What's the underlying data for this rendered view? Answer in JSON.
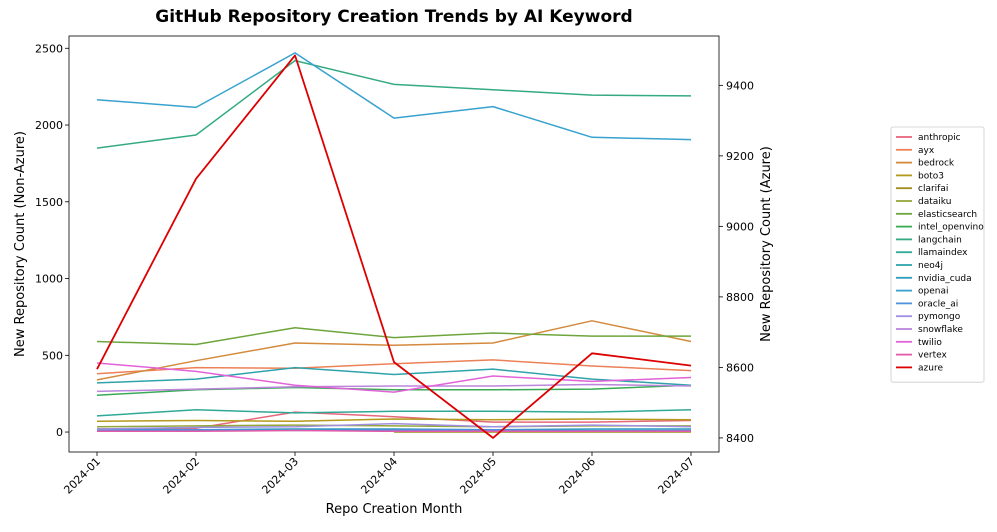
{
  "chart_data": {
    "type": "line",
    "title": "GitHub Repository Creation Trends by AI Keyword",
    "xlabel": "Repo Creation Month",
    "ylabel": "New Repository Count (Non-Azure)",
    "y2label": "New Repository Count (Azure)",
    "categories": [
      "2024-01",
      "2024-02",
      "2024-03",
      "2024-04",
      "2024-05",
      "2024-06",
      "2024-07"
    ],
    "ylim": [
      -130,
      2580
    ],
    "yticks": [
      0,
      500,
      1000,
      1500,
      2000,
      2500
    ],
    "y2lim": [
      8360,
      9540
    ],
    "y2ticks": [
      8400,
      8600,
      8800,
      9000,
      9200,
      9400
    ],
    "grid": false,
    "legend_position": "right",
    "series": [
      {
        "name": "anthropic",
        "color": "#e6677a",
        "axis": "left",
        "values": [
          20,
          25,
          130,
          100,
          65,
          65,
          75
        ]
      },
      {
        "name": "ayx",
        "color": "#ec8057",
        "axis": "left",
        "values": [
          380,
          420,
          415,
          445,
          470,
          430,
          400
        ]
      },
      {
        "name": "bedrock",
        "color": "#d38a3c",
        "axis": "left",
        "values": [
          340,
          465,
          580,
          565,
          580,
          725,
          590
        ]
      },
      {
        "name": "boto3",
        "color": "#b4991c",
        "axis": "left",
        "values": [
          70,
          75,
          70,
          85,
          80,
          85,
          80
        ]
      },
      {
        "name": "clarifai",
        "color": "#a08a1a",
        "axis": "left",
        "values": [
          null,
          null,
          null,
          0,
          0,
          0,
          0
        ]
      },
      {
        "name": "dataiku",
        "color": "#93a63a",
        "axis": "left",
        "values": [
          35,
          40,
          45,
          40,
          35,
          40,
          40
        ]
      },
      {
        "name": "elasticsearch",
        "color": "#6da53c",
        "axis": "left",
        "values": [
          590,
          570,
          680,
          615,
          645,
          625,
          625
        ]
      },
      {
        "name": "intel_openvino",
        "color": "#3aaa57",
        "axis": "left",
        "values": [
          240,
          275,
          290,
          275,
          275,
          280,
          305
        ]
      },
      {
        "name": "langchain",
        "color": "#35aa82",
        "axis": "left",
        "values": [
          1850,
          1935,
          2420,
          2265,
          2230,
          2195,
          2190
        ]
      },
      {
        "name": "llamaindex",
        "color": "#30a896",
        "axis": "left",
        "values": [
          105,
          145,
          125,
          135,
          135,
          130,
          145
        ]
      },
      {
        "name": "neo4j",
        "color": "#2fa2ab",
        "axis": "left",
        "values": [
          320,
          345,
          420,
          375,
          410,
          345,
          305
        ]
      },
      {
        "name": "nvidia_cuda",
        "color": "#2f9bbe",
        "axis": "left",
        "values": [
          20,
          15,
          20,
          20,
          15,
          20,
          20
        ]
      },
      {
        "name": "openai",
        "color": "#38a2cf",
        "axis": "left",
        "values": [
          2165,
          2115,
          2470,
          2045,
          2120,
          1920,
          1905
        ]
      },
      {
        "name": "oracle_ai",
        "color": "#4f8fdc",
        "axis": "left",
        "values": [
          10,
          15,
          10,
          15,
          15,
          10,
          10
        ]
      },
      {
        "name": "pymongo",
        "color": "#a08fe0",
        "axis": "left",
        "values": [
          20,
          30,
          35,
          55,
          35,
          45,
          35
        ]
      },
      {
        "name": "snowflake",
        "color": "#bb86dc",
        "axis": "left",
        "values": [
          265,
          280,
          295,
          300,
          300,
          310,
          300
        ]
      },
      {
        "name": "twilio",
        "color": "#e262d8",
        "axis": "left",
        "values": [
          450,
          395,
          305,
          260,
          365,
          330,
          355
        ]
      },
      {
        "name": "vertex",
        "color": "#e55aa8",
        "axis": "left",
        "values": [
          5,
          5,
          10,
          5,
          5,
          5,
          5
        ]
      },
      {
        "name": "azure",
        "color": "#dd0000",
        "axis": "right",
        "values": [
          8595,
          9135,
          9485,
          8615,
          8400,
          8640,
          8605
        ]
      }
    ]
  }
}
